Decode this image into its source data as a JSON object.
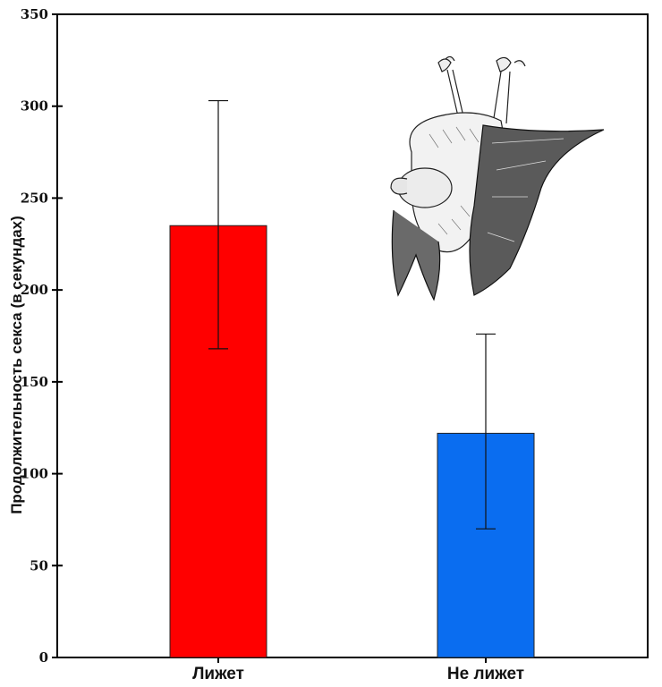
{
  "chart_data": {
    "type": "bar",
    "title": "",
    "xlabel": "",
    "ylabel": "Продолжительность секса (в секундах)",
    "ylim": [
      0,
      350
    ],
    "yticks": [
      0,
      50,
      100,
      150,
      200,
      250,
      300,
      350
    ],
    "categories": [
      "Лижет",
      "Не лижет"
    ],
    "values": [
      235,
      122
    ],
    "errors_low": [
      168,
      70
    ],
    "errors_high": [
      303,
      176
    ],
    "colors": [
      "#ff0000",
      "#0a6df0"
    ],
    "grid": false,
    "image_description": "ink sketch of a hanging bat"
  }
}
